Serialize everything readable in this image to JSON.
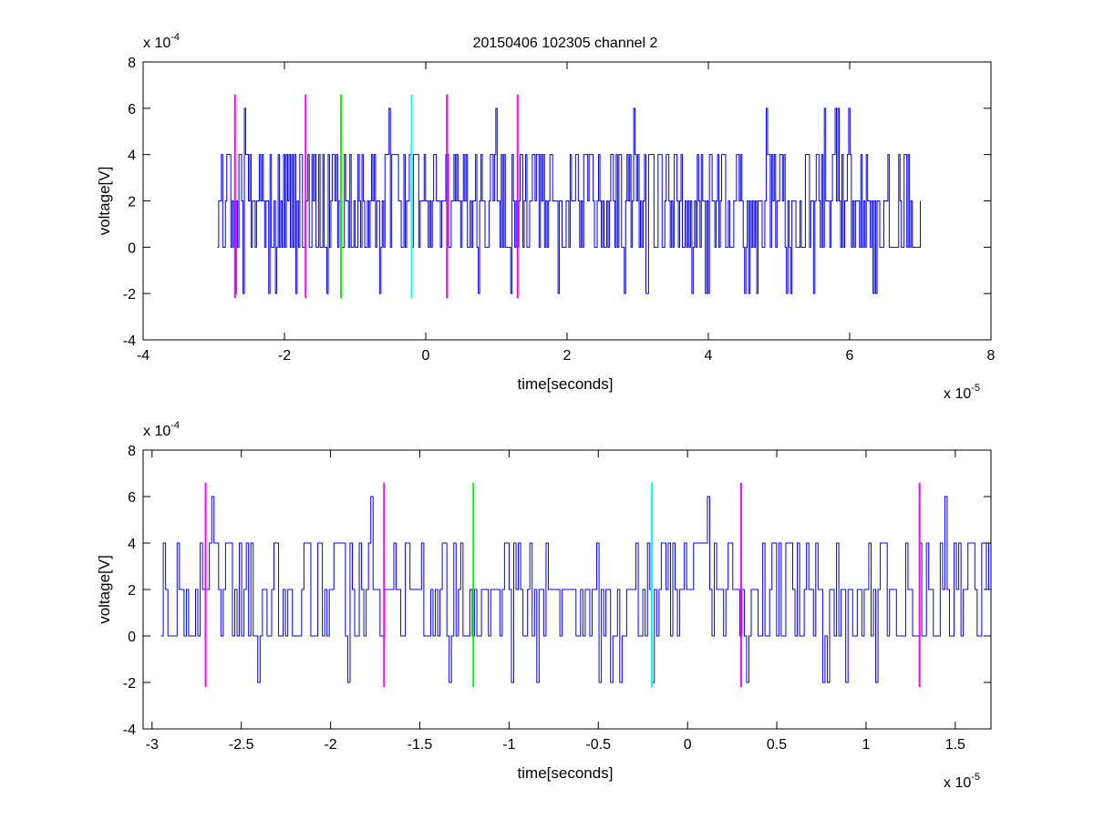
{
  "figure": {
    "title": "20150406 102305 channel 2"
  },
  "chart_data": [
    {
      "type": "line",
      "title": "20150406 102305 channel 2",
      "xlabel": "time[seconds]",
      "ylabel": "voltage[V]",
      "x_exponent_label": "x 10",
      "x_exponent": "-5",
      "y_exponent_label": "x 10",
      "y_exponent": "-4",
      "xlim": [
        -4,
        8
      ],
      "ylim": [
        -4,
        8
      ],
      "xticks": [
        -4,
        -2,
        0,
        2,
        4,
        6,
        8
      ],
      "xtick_labels": [
        "-4",
        "-2",
        "0",
        "2",
        "4",
        "6",
        "8"
      ],
      "yticks": [
        -4,
        -2,
        0,
        2,
        4,
        6,
        8
      ],
      "ytick_labels": [
        "-4",
        "-2",
        "0",
        "2",
        "4",
        "6",
        "8"
      ],
      "grid": false,
      "series": [
        {
          "color": "#0000ff",
          "x_range": [
            -2.95,
            7.0
          ],
          "levels": [
            -2,
            0,
            2,
            4,
            6
          ],
          "note_values": "noisy step signal oscillating mostly between 0 and 4 (×10^-4 V), occasional dips to -2 and spikes to 6"
        }
      ],
      "markers": [
        {
          "x": -2.7,
          "y_range": [
            -2.2,
            6.6
          ],
          "color": "#ff00ff"
        },
        {
          "x": -1.7,
          "y_range": [
            -2.2,
            6.6
          ],
          "color": "#ff00ff"
        },
        {
          "x": -1.2,
          "y_range": [
            -2.2,
            6.6
          ],
          "color": "#00ff00"
        },
        {
          "x": -0.2,
          "y_range": [
            -2.2,
            6.6
          ],
          "color": "#00ffff"
        },
        {
          "x": 0.3,
          "y_range": [
            -2.2,
            6.6
          ],
          "color": "#ff00ff"
        },
        {
          "x": 1.3,
          "y_range": [
            -2.2,
            6.6
          ],
          "color": "#ff00ff"
        }
      ]
    },
    {
      "type": "line",
      "title": "",
      "xlabel": "time[seconds]",
      "ylabel": "voltage[V]",
      "x_exponent_label": "x 10",
      "x_exponent": "-5",
      "y_exponent_label": "x 10",
      "y_exponent": "-4",
      "xlim": [
        -3.05,
        1.7
      ],
      "ylim": [
        -4,
        8
      ],
      "xticks": [
        -3,
        -2.5,
        -2,
        -1.5,
        -1,
        -0.5,
        0,
        0.5,
        1,
        1.5
      ],
      "xtick_labels": [
        "-3",
        "-2.5",
        "-2",
        "-1.5",
        "-1",
        "-0.5",
        "0",
        "0.5",
        "1",
        "1.5"
      ],
      "yticks": [
        -4,
        -2,
        0,
        2,
        4,
        6,
        8
      ],
      "ytick_labels": [
        "-4",
        "-2",
        "0",
        "2",
        "4",
        "6",
        "8"
      ],
      "grid": false,
      "series": [
        {
          "color": "#0000ff",
          "x_range": [
            -2.95,
            1.7
          ],
          "levels": [
            -2,
            0,
            2,
            4,
            6
          ],
          "note_values": "zoomed view of the same noisy signal"
        }
      ],
      "markers": [
        {
          "x": -2.7,
          "y_range": [
            -2.2,
            6.6
          ],
          "color": "#ff00ff"
        },
        {
          "x": -1.7,
          "y_range": [
            -2.2,
            6.6
          ],
          "color": "#ff00ff"
        },
        {
          "x": -1.2,
          "y_range": [
            -2.2,
            6.6
          ],
          "color": "#00ff00"
        },
        {
          "x": -0.2,
          "y_range": [
            -2.2,
            6.6
          ],
          "color": "#00ffff"
        },
        {
          "x": 0.3,
          "y_range": [
            -2.2,
            6.6
          ],
          "color": "#ff00ff"
        },
        {
          "x": 1.3,
          "y_range": [
            -2.2,
            6.6
          ],
          "color": "#ff00ff"
        }
      ]
    }
  ]
}
